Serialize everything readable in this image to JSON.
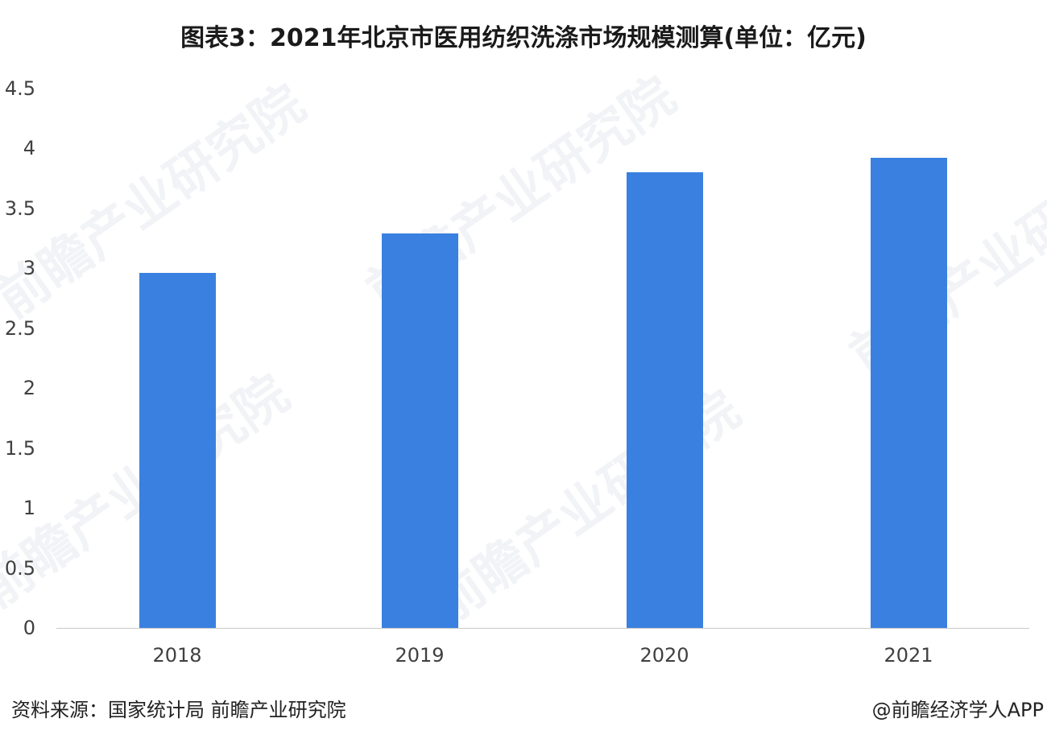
{
  "title": "图表3：2021年北京市医用纺织洗涤市场规模测算(单位：亿元)",
  "source": "资料来源：国家统计局 前瞻产业研究院",
  "brand": "@前瞻经济学人APP",
  "watermark": "前瞻产业研究院",
  "colors": {
    "bar": "#3a80e0",
    "axis": "#c8c8c8",
    "text": "#404040"
  },
  "chart_data": {
    "type": "bar",
    "title": "图表3：2021年北京市医用纺织洗涤市场规模测算(单位：亿元)",
    "xlabel": "",
    "ylabel": "亿元",
    "categories": [
      "2018",
      "2019",
      "2020",
      "2021"
    ],
    "values": [
      2.96,
      3.29,
      3.8,
      3.92
    ],
    "ylim": [
      0,
      4.5
    ],
    "yticks": [
      "0",
      "0.5",
      "1",
      "1.5",
      "2",
      "2.5",
      "3",
      "3.5",
      "4",
      "4.5"
    ],
    "grid": false,
    "legend": null
  }
}
